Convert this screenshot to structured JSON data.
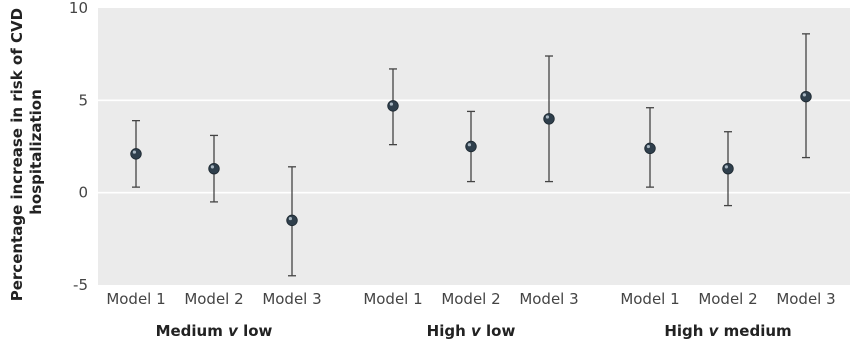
{
  "chart_data": {
    "type": "scatter",
    "title": "",
    "ylabel_lines": [
      "Percentage increase in risk of CVD",
      "hospitalization"
    ],
    "ylim": [
      -5,
      10
    ],
    "yticks": [
      "-5",
      "0",
      "5",
      "10"
    ],
    "grid": true,
    "plot_background": "#ebebeb",
    "marker_color": "#2f3f4c",
    "errorbar_color": "#444444",
    "groups": [
      {
        "label_parts": [
          "Medium ",
          "v",
          " low"
        ],
        "points": [
          {
            "model": "Model 1",
            "estimate": 2.1,
            "lower": 0.3,
            "upper": 3.9
          },
          {
            "model": "Model 2",
            "estimate": 1.3,
            "lower": -0.5,
            "upper": 3.1
          },
          {
            "model": "Model 3",
            "estimate": -1.5,
            "lower": -4.5,
            "upper": 1.4
          }
        ]
      },
      {
        "label_parts": [
          "High ",
          "v",
          " low"
        ],
        "points": [
          {
            "model": "Model 1",
            "estimate": 4.7,
            "lower": 2.6,
            "upper": 6.7
          },
          {
            "model": "Model 2",
            "estimate": 2.5,
            "lower": 0.6,
            "upper": 4.4
          },
          {
            "model": "Model 3",
            "estimate": 4.0,
            "lower": 0.6,
            "upper": 7.4
          }
        ]
      },
      {
        "label_parts": [
          "High ",
          "v",
          " medium"
        ],
        "points": [
          {
            "model": "Model 1",
            "estimate": 2.4,
            "lower": 0.3,
            "upper": 4.6
          },
          {
            "model": "Model 2",
            "estimate": 1.3,
            "lower": -0.7,
            "upper": 3.3
          },
          {
            "model": "Model 3",
            "estimate": 5.2,
            "lower": 1.9,
            "upper": 8.6
          }
        ]
      }
    ]
  }
}
